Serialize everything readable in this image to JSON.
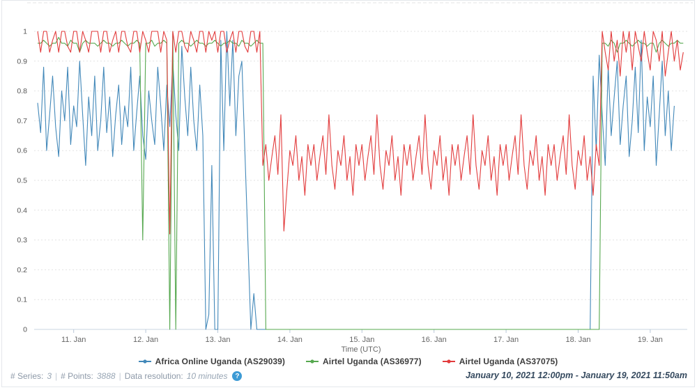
{
  "chart_data": {
    "type": "line",
    "title": "",
    "xlabel": "Time (UTC)",
    "ylabel": "",
    "ylim": [
      0,
      1
    ],
    "grid": true,
    "legend_position": "bottom",
    "y_tick_labels": [
      "1",
      "0.9",
      "0.8",
      "0.7",
      "0.6",
      "0.5",
      "0.4",
      "0.3",
      "0.2",
      "0.1",
      "0"
    ],
    "y_tick_values": [
      1,
      0.9,
      0.8,
      0.7,
      0.6,
      0.5,
      0.4,
      0.3,
      0.2,
      0.1,
      0
    ],
    "x_tick_labels": [
      "11. Jan",
      "12. Jan",
      "13. Jan",
      "14. Jan",
      "15. Jan",
      "16. Jan",
      "17. Jan",
      "18. Jan",
      "19. Jan"
    ],
    "x_tick_day_offsets": [
      1,
      2,
      3,
      4,
      5,
      6,
      7,
      8,
      9
    ],
    "time": {
      "start_label": "January 10, 2021 12:00pm",
      "end_label": "January 19, 2021 11:50am",
      "start_day_offset": 0.5,
      "step_hours": 1
    },
    "series": [
      {
        "name": "Africa Online Uganda (AS29039)",
        "color": "#4288b9",
        "values": [
          0.76,
          0.66,
          0.88,
          0.6,
          0.72,
          0.85,
          0.68,
          0.58,
          0.8,
          0.7,
          0.88,
          0.62,
          0.75,
          0.68,
          0.9,
          0.72,
          0.55,
          0.78,
          0.65,
          0.85,
          0.6,
          0.7,
          0.88,
          0.66,
          0.78,
          0.58,
          0.72,
          0.82,
          0.62,
          0.75,
          0.68,
          0.88,
          0.6,
          0.73,
          0.85,
          0.65,
          0.57,
          0.8,
          0.7,
          0.62,
          0.88,
          0.75,
          0.6,
          0.82,
          0.68,
          0.9,
          0.72,
          0.6,
          0.95,
          0.78,
          0.65,
          0.88,
          0.7,
          0.6,
          0.82,
          0.65,
          0,
          0.05,
          0.55,
          0,
          0,
          0.97,
          0.6,
          1,
          0.75,
          0.97,
          0.65,
          0.85,
          0.9,
          0.6,
          0.3,
          0,
          0.12,
          0,
          0,
          0,
          0,
          0,
          0,
          0,
          0,
          0,
          0,
          0,
          0,
          0,
          0,
          0,
          0,
          0,
          0,
          0,
          0,
          0,
          0,
          0,
          0,
          0,
          0,
          0,
          0,
          0,
          0,
          0,
          0,
          0,
          0,
          0,
          0,
          0,
          0,
          0,
          0,
          0,
          0,
          0,
          0,
          0,
          0,
          0,
          0,
          0,
          0,
          0,
          0,
          0,
          0,
          0,
          0,
          0,
          0,
          0,
          0,
          0,
          0,
          0,
          0,
          0,
          0,
          0,
          0,
          0,
          0,
          0,
          0,
          0,
          0,
          0,
          0,
          0,
          0,
          0,
          0,
          0,
          0,
          0,
          0,
          0,
          0,
          0,
          0,
          0,
          0,
          0,
          0,
          0,
          0,
          0,
          0,
          0,
          0,
          0,
          0,
          0,
          0,
          0,
          0,
          0,
          0,
          0,
          0,
          0,
          0,
          0,
          0,
          0.85,
          0.6,
          0.92,
          0.72,
          0.55,
          0.88,
          0.65,
          0.78,
          0.9,
          0.62,
          0.75,
          0.85,
          0.58,
          0.7,
          0.88,
          0.66,
          0.97,
          0.6,
          0.78,
          0.68,
          0.85,
          0.55,
          0.72,
          0.9,
          0.65,
          0.8,
          0.6,
          0.75
        ]
      },
      {
        "name": "Airtel Uganda (AS36977)",
        "color": "#56a84f",
        "values": [
          0.96,
          0.96,
          0.97,
          0.96,
          0.95,
          0.96,
          0.96,
          0.98,
          0.96,
          0.96,
          0.95,
          0.97,
          0.96,
          0.96,
          0.93,
          0.96,
          0.97,
          0.96,
          0.96,
          0.96,
          0.95,
          0.96,
          0.97,
          0.96,
          0.96,
          0.95,
          0.96,
          0.96,
          0.97,
          0.96,
          0.95,
          0.96,
          0.96,
          0.97,
          0.96,
          0.3,
          0.96,
          0.96,
          0.97,
          0.95,
          0.96,
          0.96,
          0.97,
          0.96,
          0,
          1,
          0,
          0.96,
          0.97,
          0.96,
          0.96,
          0.95,
          0.96,
          0.97,
          0.96,
          0.96,
          0.95,
          0.96,
          0.96,
          0.97,
          0.96,
          0.95,
          0.96,
          0.96,
          0.97,
          0.96,
          0.96,
          0.95,
          0.97,
          0.96,
          0.96,
          0.95,
          0.96,
          0.97,
          0.96,
          0.96,
          0,
          0,
          0,
          0,
          0,
          0,
          0,
          0,
          0,
          0,
          0,
          0,
          0,
          0,
          0,
          0,
          0,
          0,
          0,
          0,
          0,
          0,
          0,
          0,
          0,
          0,
          0,
          0,
          0,
          0,
          0,
          0,
          0,
          0,
          0,
          0,
          0,
          0,
          0,
          0,
          0,
          0,
          0,
          0,
          0,
          0,
          0,
          0,
          0,
          0,
          0,
          0,
          0,
          0,
          0,
          0,
          0,
          0,
          0,
          0,
          0,
          0,
          0,
          0,
          0,
          0,
          0,
          0,
          0,
          0,
          0,
          0,
          0,
          0,
          0,
          0,
          0,
          0,
          0,
          0,
          0,
          0,
          0,
          0,
          0,
          0,
          0,
          0,
          0,
          0,
          0,
          0,
          0,
          0,
          0,
          0,
          0,
          0,
          0,
          0,
          0,
          0,
          0,
          0,
          0,
          0,
          0,
          0,
          0,
          0,
          0,
          0,
          0.96,
          0.96,
          0.95,
          0.97,
          0.96,
          0.93,
          0.96,
          0.96,
          0.97,
          0.96,
          0.95,
          0.96,
          0.97,
          0.96,
          0.96,
          0.95,
          0.96,
          0.96,
          0.93,
          0.96,
          0.97,
          0.96,
          0.95,
          0.96,
          0.96,
          0.97,
          0.96,
          0.96
        ]
      },
      {
        "name": "Airtel Uganda (AS37075)",
        "color": "#e23b3c",
        "values": [
          1,
          0.93,
          1,
          1,
          0.93,
          0.97,
          1,
          0.93,
          1,
          1,
          0.95,
          0.93,
          1,
          1,
          0.93,
          1,
          0.97,
          0.93,
          1,
          1,
          1,
          0.93,
          1,
          1,
          0.93,
          0.97,
          1,
          0.93,
          1,
          1,
          0.95,
          0.93,
          1,
          1,
          0.93,
          1,
          0.97,
          0.93,
          1,
          1,
          1,
          0.93,
          1,
          0.97,
          0.32,
          1,
          0.93,
          1,
          1,
          0.95,
          0.93,
          1,
          0.97,
          0.93,
          1,
          1,
          0.93,
          1,
          0.97,
          1,
          0.93,
          1,
          1,
          0.93,
          0.97,
          1,
          0.93,
          1,
          1,
          0.95,
          0.93,
          1,
          1,
          0.93,
          1,
          0.55,
          0.62,
          0.5,
          0.58,
          0.65,
          0.52,
          0.72,
          0.33,
          0.47,
          0.6,
          0.55,
          0.65,
          0.5,
          0.58,
          0.45,
          0.62,
          0.55,
          0.62,
          0.5,
          0.58,
          0.65,
          0.52,
          0.72,
          0.55,
          0.47,
          0.6,
          0.55,
          0.65,
          0.5,
          0.58,
          0.45,
          0.62,
          0.55,
          0.62,
          0.5,
          0.58,
          0.65,
          0.52,
          0.72,
          0.55,
          0.47,
          0.6,
          0.55,
          0.65,
          0.5,
          0.58,
          0.45,
          0.62,
          0.55,
          0.62,
          0.5,
          0.58,
          0.65,
          0.52,
          0.72,
          0.55,
          0.47,
          0.6,
          0.55,
          0.65,
          0.5,
          0.58,
          0.45,
          0.62,
          0.55,
          0.62,
          0.5,
          0.58,
          0.65,
          0.52,
          0.72,
          0.55,
          0.47,
          0.6,
          0.55,
          0.65,
          0.5,
          0.58,
          0.45,
          0.62,
          0.55,
          0.62,
          0.5,
          0.58,
          0.65,
          0.52,
          0.72,
          0.55,
          0.47,
          0.6,
          0.55,
          0.65,
          0.5,
          0.58,
          0.45,
          0.62,
          0.55,
          0.62,
          0.5,
          0.58,
          0.65,
          0.52,
          0.72,
          0.55,
          0.47,
          0.6,
          0.55,
          0.65,
          0.5,
          0.58,
          0.45,
          0.62,
          0.55,
          1,
          0.93,
          0.87,
          1,
          0.9,
          0.97,
          0.85,
          1,
          0.93,
          1,
          0.87,
          1,
          0.95,
          0.9,
          1,
          0.93,
          0.87,
          1,
          0.97,
          0.9,
          1,
          0.85,
          0.93,
          1,
          0.9,
          0.97,
          0.87,
          0.93
        ]
      }
    ]
  },
  "footer": {
    "series_label": "# Series:",
    "series_value": "3",
    "sep1": "|",
    "points_label": "# Points:",
    "points_value": "3888",
    "sep2": "|",
    "resolution_label": "Data resolution:",
    "resolution_value": "10 minutes",
    "help_glyph": "?",
    "date_range": "January 10, 2021 12:00pm - January 19, 2021 11:50am"
  }
}
